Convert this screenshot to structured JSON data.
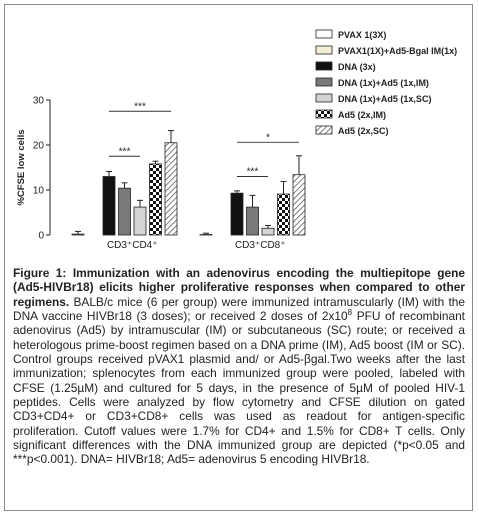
{
  "chart_data": {
    "type": "bar",
    "ylabel": "%CFSE low cells",
    "ylim": [
      0,
      30
    ],
    "yticks": [
      "0",
      "10",
      "20",
      "30"
    ],
    "groups": [
      "CD3⁺CD4⁺",
      "CD3⁺CD8⁺"
    ],
    "series": [
      {
        "name": "PVAX 1(3X)",
        "fill": "#ffffff",
        "values": [
          0.2,
          0.1
        ],
        "errors": [
          0.6,
          0.3
        ]
      },
      {
        "name": "PVAX1(1X)+Ad5-Bgal IM(1x)",
        "fill": "#f3efd6",
        "values": [
          0,
          0
        ],
        "errors": [
          0,
          0
        ]
      },
      {
        "name": "DNA (3x)",
        "fill": "#111111",
        "values": [
          13.0,
          9.3
        ],
        "errors": [
          1.1,
          0.5
        ]
      },
      {
        "name": "DNA (1x)+Ad5 (1x,IM)",
        "fill": "#7a7a7a",
        "values": [
          10.4,
          6.2
        ],
        "errors": [
          1.2,
          2.6
        ]
      },
      {
        "name": "DNA (1x)+Ad5 (1x,SC)",
        "fill": "#d4d4d4",
        "values": [
          6.2,
          1.5
        ],
        "errors": [
          1.5,
          0.6
        ]
      },
      {
        "name": "Ad5 (2x,IM)",
        "fill": "checker",
        "values": [
          15.8,
          9.1
        ],
        "errors": [
          0.6,
          2.8
        ]
      },
      {
        "name": "Ad5 (2x,SC)",
        "fill": "hatch",
        "values": [
          20.5,
          13.4
        ],
        "errors": [
          2.7,
          4.2
        ]
      }
    ],
    "significance": [
      {
        "group": 0,
        "from": 2,
        "to": 6,
        "label": "***"
      },
      {
        "group": 0,
        "from": 2,
        "to": 4,
        "label": "***"
      },
      {
        "group": 1,
        "from": 2,
        "to": 6,
        "label": "*"
      },
      {
        "group": 1,
        "from": 2,
        "to": 4,
        "label": "***"
      }
    ]
  },
  "caption": {
    "label": "Figure 1: Immunization with an adenovirus encoding the multiepitope gene (Ad5-HIVBr18) elicits higher proliferative responses when compared to other regimens.",
    "text_1": " BALB/c mice (6 per group) were immunized intramuscularly (IM) with the DNA vaccine HIVBr18 (3 doses); or received 2 doses of 2x10",
    "sup": "8",
    "text_2": " PFU of recombinant adenovirus (Ad5) by intramuscular (IM) or subcutaneous (SC) route; or received a heterologous prime-boost regimen based on a DNA prime (IM), Ad5 boost (IM or SC). Control groups received pVAX1 plasmid and/ or Ad5-βgal.Two weeks after the last immunization; splenocytes from each immunized group were pooled, labeled with CFSE (1.25µM) and cultured for 5 days, in the presence of 5µM of pooled HIV-1 peptides. Cells were analyzed by flow cytometry and CFSE dilution on gated CD3+CD4+ or CD3+CD8+ cells was used as readout for antigen-specific proliferation. Cutoff values were 1.7% for CD4+ and 1.5% for CD8+ T cells. Only significant differences with the DNA immunized group are depicted (*p<0.05 and ***p<0.001). DNA= HIVBr18; Ad5= adenovirus 5 encoding HIVBr18."
  }
}
